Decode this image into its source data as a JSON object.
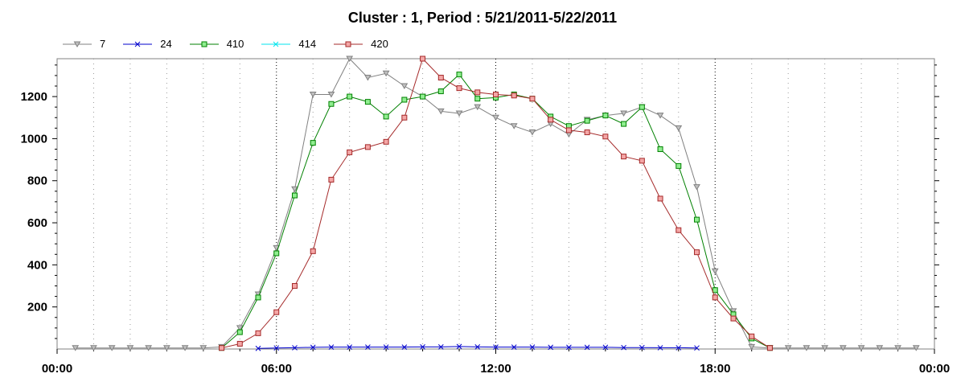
{
  "chart_data": {
    "type": "line",
    "title": "Cluster : 1, Period : 5/21/2011-5/22/2011",
    "xlabel": "",
    "ylabel": "",
    "x_ticks": [
      "00:00",
      "06:00",
      "12:00",
      "18:00",
      "00:00"
    ],
    "x_range_hours": [
      0,
      24
    ],
    "y_ticks": [
      200,
      400,
      600,
      800,
      1000,
      1200
    ],
    "ylim": [
      0,
      1380
    ],
    "grid": "dotted",
    "legend_position": "top-left",
    "series": [
      {
        "name": "7",
        "color": "#808080",
        "marker": "triangle-down",
        "x": [
          0.5,
          1.0,
          1.5,
          2.0,
          2.5,
          3.0,
          3.5,
          4.0,
          4.5,
          5.0,
          5.5,
          6.0,
          6.5,
          7.0,
          7.5,
          8.0,
          8.5,
          9.0,
          9.5,
          10.0,
          10.5,
          11.0,
          11.5,
          12.0,
          12.5,
          13.0,
          13.5,
          14.0,
          14.5,
          15.0,
          15.5,
          16.0,
          16.5,
          17.0,
          17.5,
          18.0,
          18.5,
          19.0,
          19.5,
          20.0,
          20.5,
          21.0,
          21.5,
          22.0,
          22.5,
          23.0,
          23.5
        ],
        "y": [
          5,
          5,
          5,
          5,
          5,
          5,
          5,
          5,
          10,
          100,
          260,
          480,
          760,
          1210,
          1210,
          1380,
          1290,
          1310,
          1250,
          1200,
          1130,
          1120,
          1150,
          1100,
          1060,
          1030,
          1070,
          1020,
          1090,
          1110,
          1120,
          1150,
          1110,
          1050,
          770,
          370,
          180,
          10,
          5,
          5,
          5,
          5,
          5,
          5,
          5,
          5,
          5
        ]
      },
      {
        "name": "24",
        "color": "#0000cc",
        "marker": "x",
        "x": [
          5.5,
          6.0,
          6.5,
          7.0,
          7.5,
          8.0,
          8.5,
          9.0,
          9.5,
          10.0,
          10.5,
          11.0,
          11.5,
          12.0,
          12.5,
          13.0,
          13.5,
          14.0,
          14.5,
          15.0,
          15.5,
          16.0,
          16.5,
          17.0,
          17.5
        ],
        "y": [
          3,
          5,
          6,
          8,
          9,
          9,
          9,
          9,
          9,
          10,
          10,
          12,
          10,
          9,
          9,
          9,
          8,
          8,
          8,
          8,
          7,
          7,
          6,
          6,
          5
        ]
      },
      {
        "name": "410",
        "color": "#008000",
        "marker": "square",
        "x": [
          4.5,
          5.0,
          5.5,
          6.0,
          6.5,
          7.0,
          7.5,
          8.0,
          8.5,
          9.0,
          9.5,
          10.0,
          10.5,
          11.0,
          11.5,
          12.0,
          12.5,
          13.0,
          13.5,
          14.0,
          14.5,
          15.0,
          15.5,
          16.0,
          16.5,
          17.0,
          17.5,
          18.0,
          18.5,
          19.0,
          19.5
        ],
        "y": [
          5,
          80,
          245,
          455,
          730,
          980,
          1165,
          1200,
          1175,
          1105,
          1185,
          1200,
          1225,
          1305,
          1190,
          1195,
          1210,
          1190,
          1105,
          1060,
          1085,
          1110,
          1070,
          1150,
          950,
          870,
          615,
          280,
          165,
          50,
          5
        ]
      },
      {
        "name": "414",
        "color": "#00e5ee",
        "marker": "x",
        "x": [],
        "y": []
      },
      {
        "name": "420",
        "color": "#a52a2a",
        "marker": "square",
        "x": [
          4.5,
          5.0,
          5.5,
          6.0,
          6.5,
          7.0,
          7.5,
          8.0,
          8.5,
          9.0,
          9.5,
          10.0,
          10.5,
          11.0,
          11.5,
          12.0,
          12.5,
          13.0,
          13.5,
          14.0,
          14.5,
          15.0,
          15.5,
          16.0,
          16.5,
          17.0,
          17.5,
          18.0,
          18.5,
          19.0,
          19.5
        ],
        "y": [
          5,
          25,
          75,
          175,
          300,
          465,
          805,
          935,
          960,
          985,
          1100,
          1380,
          1290,
          1240,
          1220,
          1210,
          1205,
          1190,
          1090,
          1040,
          1030,
          1010,
          915,
          895,
          715,
          565,
          460,
          245,
          145,
          60,
          5
        ]
      }
    ]
  }
}
